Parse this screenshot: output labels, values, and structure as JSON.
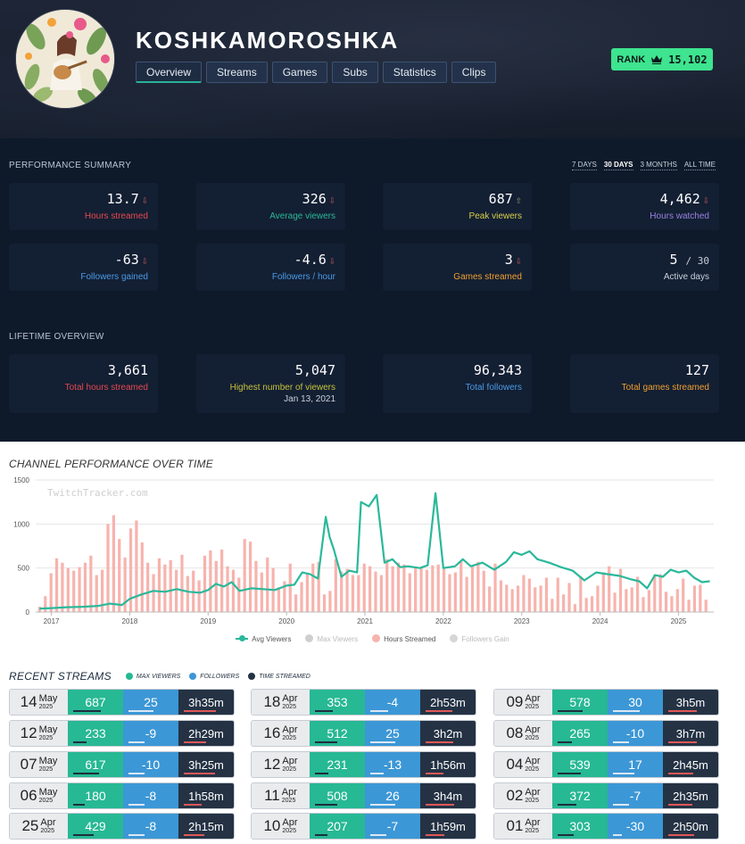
{
  "channel": {
    "name": "KOSHKAMOROSHKA",
    "rank_label": "RANK",
    "rank_value": "15,102"
  },
  "tabs": [
    "Overview",
    "Streams",
    "Games",
    "Subs",
    "Statistics",
    "Clips"
  ],
  "performance": {
    "title": "PERFORMANCE SUMMARY",
    "ranges": [
      "7 DAYS",
      "30 DAYS",
      "3 MONTHS",
      "ALL TIME"
    ],
    "selected_range": "30 DAYS",
    "cards": [
      {
        "value": "13.7",
        "trend": "⇩",
        "label": "Hours streamed",
        "color": "#e5484d"
      },
      {
        "value": "326",
        "trend": "⇩",
        "label": "Average viewers",
        "color": "#2bb89a"
      },
      {
        "value": "687",
        "trend": "⇧",
        "label": "Peak viewers",
        "color": "#d8cf4a"
      },
      {
        "value": "4,462",
        "trend": "⇩",
        "label": "Hours watched",
        "color": "#9b82e0"
      },
      {
        "value": "-63",
        "trend": "⇩",
        "label": "Followers gained",
        "color": "#4a9be6"
      },
      {
        "value": "-4.6",
        "trend": "⇩",
        "label": "Followers / hour",
        "color": "#4a9be6"
      },
      {
        "value": "3",
        "trend": "⇩",
        "label": "Games streamed",
        "color": "#f0a030"
      },
      {
        "value": "5",
        "suffix": "/ 30",
        "label": "Active days",
        "color": "#c9d1dc"
      }
    ]
  },
  "lifetime": {
    "title": "LIFETIME OVERVIEW",
    "cards": [
      {
        "value": "3,661",
        "label": "Total hours streamed",
        "color": "#e5484d"
      },
      {
        "value": "5,047",
        "label": "Highest number of viewers",
        "sub": "Jan 13, 2021",
        "color": "#c8c23a"
      },
      {
        "value": "96,343",
        "label": "Total followers",
        "color": "#4a9be6"
      },
      {
        "value": "127",
        "label": "Total games streamed",
        "color": "#f0a030"
      }
    ]
  },
  "chart_title": "CHANNEL PERFORMANCE OVER TIME",
  "chart_data": {
    "type": "bar",
    "watermark": "TwitchTracker.com",
    "y_ticks": [
      0,
      500,
      1000,
      1500
    ],
    "ylim": [
      0,
      1500
    ],
    "x_ticks": [
      "2017",
      "2018",
      "2019",
      "2020",
      "2021",
      "2022",
      "2023",
      "2024",
      "2025"
    ],
    "x_range": [
      2016.8,
      2025.45
    ],
    "series": [
      {
        "name": "Avg Viewers",
        "color": "#2bb89a"
      },
      {
        "name": "Max Viewers",
        "color": "#cfcfcf"
      },
      {
        "name": "Hours Streamed",
        "color": "#f7b3ad"
      },
      {
        "name": "Followers Gain",
        "color": "#d6d6d6"
      }
    ],
    "hours_streamed": [
      60,
      180,
      440,
      610,
      560,
      500,
      470,
      510,
      560,
      640,
      420,
      480,
      1000,
      1100,
      830,
      620,
      950,
      1040,
      790,
      560,
      430,
      610,
      540,
      590,
      480,
      650,
      410,
      470,
      360,
      640,
      700,
      580,
      710,
      520,
      480,
      390,
      830,
      800,
      580,
      450,
      620,
      500,
      280,
      350,
      550,
      200,
      340,
      430,
      550,
      570,
      200,
      240,
      600,
      460,
      490,
      420,
      420,
      550,
      520,
      460,
      420,
      600,
      520,
      560,
      540,
      440,
      510,
      500,
      480,
      530,
      540,
      490,
      430,
      450,
      580,
      400,
      530,
      570,
      470,
      290,
      550,
      360,
      310,
      260,
      300,
      420,
      380,
      280,
      300,
      390,
      150,
      390,
      200,
      330,
      90,
      400,
      160,
      180,
      300,
      450,
      520,
      220,
      490,
      260,
      280,
      400,
      170,
      250,
      420,
      430,
      230,
      180,
      260,
      380,
      140,
      300,
      310,
      140
    ],
    "avg_viewers": [
      [
        2016.85,
        40
      ],
      [
        2017.0,
        45
      ],
      [
        2017.2,
        55
      ],
      [
        2017.4,
        60
      ],
      [
        2017.6,
        70
      ],
      [
        2017.75,
        95
      ],
      [
        2017.9,
        80
      ],
      [
        2018.0,
        150
      ],
      [
        2018.15,
        200
      ],
      [
        2018.3,
        240
      ],
      [
        2018.45,
        230
      ],
      [
        2018.6,
        260
      ],
      [
        2018.75,
        230
      ],
      [
        2018.9,
        220
      ],
      [
        2019.0,
        250
      ],
      [
        2019.1,
        320
      ],
      [
        2019.2,
        290
      ],
      [
        2019.3,
        340
      ],
      [
        2019.4,
        240
      ],
      [
        2019.55,
        270
      ],
      [
        2019.7,
        260
      ],
      [
        2019.85,
        250
      ],
      [
        2020.0,
        300
      ],
      [
        2020.1,
        310
      ],
      [
        2020.2,
        450
      ],
      [
        2020.3,
        430
      ],
      [
        2020.4,
        380
      ],
      [
        2020.5,
        1080
      ],
      [
        2020.55,
        850
      ],
      [
        2020.6,
        720
      ],
      [
        2020.7,
        400
      ],
      [
        2020.8,
        470
      ],
      [
        2020.9,
        450
      ],
      [
        2020.95,
        1250
      ],
      [
        2021.05,
        1200
      ],
      [
        2021.15,
        1330
      ],
      [
        2021.25,
        560
      ],
      [
        2021.35,
        600
      ],
      [
        2021.45,
        510
      ],
      [
        2021.55,
        520
      ],
      [
        2021.7,
        500
      ],
      [
        2021.8,
        530
      ],
      [
        2021.9,
        1350
      ],
      [
        2022.0,
        500
      ],
      [
        2022.15,
        520
      ],
      [
        2022.25,
        600
      ],
      [
        2022.35,
        520
      ],
      [
        2022.5,
        560
      ],
      [
        2022.65,
        480
      ],
      [
        2022.8,
        570
      ],
      [
        2022.9,
        680
      ],
      [
        2023.0,
        650
      ],
      [
        2023.1,
        690
      ],
      [
        2023.2,
        600
      ],
      [
        2023.35,
        560
      ],
      [
        2023.5,
        510
      ],
      [
        2023.65,
        470
      ],
      [
        2023.8,
        360
      ],
      [
        2023.95,
        450
      ],
      [
        2024.1,
        430
      ],
      [
        2024.25,
        410
      ],
      [
        2024.4,
        370
      ],
      [
        2024.5,
        350
      ],
      [
        2024.6,
        270
      ],
      [
        2024.7,
        420
      ],
      [
        2024.8,
        400
      ],
      [
        2024.9,
        480
      ],
      [
        2025.0,
        450
      ],
      [
        2025.1,
        470
      ],
      [
        2025.2,
        390
      ],
      [
        2025.3,
        340
      ],
      [
        2025.4,
        350
      ]
    ]
  },
  "legend": [
    "Avg Viewers",
    "Max Viewers",
    "Hours Streamed",
    "Followers Gain"
  ],
  "recent": {
    "title": "RECENT STREAMS",
    "legend": [
      "MAX VIEWERS",
      "FOLLOWERS",
      "TIME STREAMED"
    ],
    "rows": [
      {
        "day": "14",
        "month": "May",
        "year": "2025",
        "max": "687",
        "followers": "25",
        "time": "3h35m",
        "b1": 0.62,
        "b2": 0.55,
        "b3": 0.72
      },
      {
        "day": "12",
        "month": "May",
        "year": "2025",
        "max": "233",
        "followers": "-9",
        "time": "2h29m",
        "b1": 0.3,
        "b2": 0.35,
        "b3": 0.5
      },
      {
        "day": "07",
        "month": "May",
        "year": "2025",
        "max": "617",
        "followers": "-10",
        "time": "3h25m",
        "b1": 0.58,
        "b2": 0.35,
        "b3": 0.7
      },
      {
        "day": "06",
        "month": "May",
        "year": "2025",
        "max": "180",
        "followers": "-8",
        "time": "1h58m",
        "b1": 0.25,
        "b2": 0.35,
        "b3": 0.4
      },
      {
        "day": "25",
        "month": "Apr",
        "year": "2025",
        "max": "429",
        "followers": "-8",
        "time": "2h15m",
        "b1": 0.45,
        "b2": 0.35,
        "b3": 0.46
      },
      {
        "day": "18",
        "month": "Apr",
        "year": "2025",
        "max": "353",
        "followers": "-4",
        "time": "2h53m",
        "b1": 0.4,
        "b2": 0.4,
        "b3": 0.6
      },
      {
        "day": "16",
        "month": "Apr",
        "year": "2025",
        "max": "512",
        "followers": "25",
        "time": "3h2m",
        "b1": 0.5,
        "b2": 0.55,
        "b3": 0.62
      },
      {
        "day": "12",
        "month": "Apr",
        "year": "2025",
        "max": "231",
        "followers": "-13",
        "time": "1h56m",
        "b1": 0.3,
        "b2": 0.3,
        "b3": 0.4
      },
      {
        "day": "11",
        "month": "Apr",
        "year": "2025",
        "max": "508",
        "followers": "26",
        "time": "3h4m",
        "b1": 0.5,
        "b2": 0.56,
        "b3": 0.63
      },
      {
        "day": "10",
        "month": "Apr",
        "year": "2025",
        "max": "207",
        "followers": "-7",
        "time": "1h59m",
        "b1": 0.28,
        "b2": 0.36,
        "b3": 0.41
      },
      {
        "day": "09",
        "month": "Apr",
        "year": "2025",
        "max": "578",
        "followers": "30",
        "time": "3h5m",
        "b1": 0.55,
        "b2": 0.6,
        "b3": 0.63
      },
      {
        "day": "08",
        "month": "Apr",
        "year": "2025",
        "max": "265",
        "followers": "-10",
        "time": "3h7m",
        "b1": 0.32,
        "b2": 0.35,
        "b3": 0.64
      },
      {
        "day": "04",
        "month": "Apr",
        "year": "2025",
        "max": "539",
        "followers": "17",
        "time": "2h45m",
        "b1": 0.52,
        "b2": 0.48,
        "b3": 0.56
      },
      {
        "day": "02",
        "month": "Apr",
        "year": "2025",
        "max": "372",
        "followers": "-7",
        "time": "2h35m",
        "b1": 0.42,
        "b2": 0.36,
        "b3": 0.53
      },
      {
        "day": "01",
        "month": "Apr",
        "year": "2025",
        "max": "303",
        "followers": "-30",
        "time": "2h50m",
        "b1": 0.36,
        "b2": 0.2,
        "b3": 0.58
      }
    ]
  }
}
